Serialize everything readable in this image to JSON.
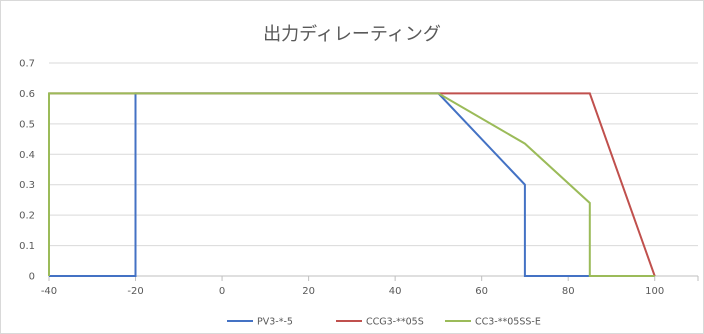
{
  "chart_data": {
    "type": "line",
    "title": "出力ディレーティング",
    "xlabel": "",
    "ylabel": "",
    "xlim": [
      -40,
      110
    ],
    "ylim": [
      0,
      0.7
    ],
    "x_ticks": [
      "-40",
      "-20",
      "0",
      "20",
      "40",
      "60",
      "80",
      "100"
    ],
    "y_ticks": [
      "0",
      "0.1",
      "0.2",
      "0.3",
      "0.4",
      "0.5",
      "0.6",
      "0.7"
    ],
    "grid": "horizontal",
    "legend_position": "bottom",
    "series": [
      {
        "name": "PV3-*-5",
        "color": "#4472C4",
        "points": [
          [
            -40,
            0
          ],
          [
            -20,
            0
          ],
          [
            -20,
            0.6
          ],
          [
            50,
            0.6
          ],
          [
            70,
            0.3
          ],
          [
            70,
            0
          ],
          [
            85,
            0
          ]
        ]
      },
      {
        "name": "CCG3-**05S",
        "color": "#C0504D",
        "points": [
          [
            -40,
            0.6
          ],
          [
            85,
            0.6
          ],
          [
            100,
            0
          ]
        ]
      },
      {
        "name": "CC3-**05SS-E",
        "color": "#9BBB59",
        "points": [
          [
            -40,
            0
          ],
          [
            -40,
            0.6
          ],
          [
            50,
            0.6
          ],
          [
            70,
            0.435
          ],
          [
            85,
            0.24
          ],
          [
            85,
            0
          ],
          [
            100,
            0
          ]
        ]
      }
    ]
  }
}
